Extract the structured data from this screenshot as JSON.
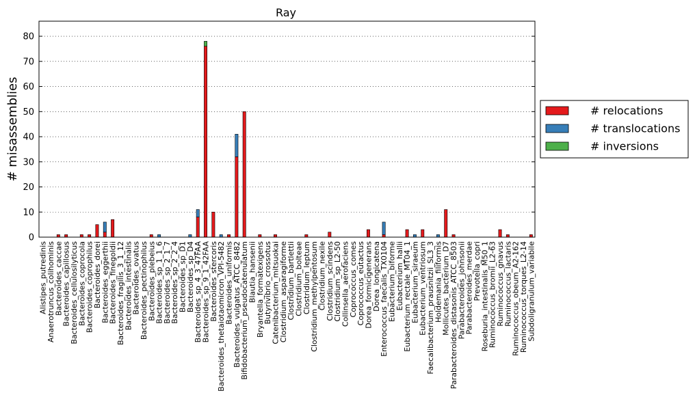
{
  "chart_data": {
    "type": "bar",
    "stacked": true,
    "title": "Ray",
    "xlabel": "",
    "ylabel": "# misassemblies",
    "ylim": [
      0,
      86
    ],
    "yticks": [
      0,
      10,
      20,
      30,
      40,
      50,
      60,
      70,
      80
    ],
    "grid": "horizontal dotted",
    "legend_placement": "right, outside",
    "categories": [
      "Alistipes_putredinis",
      "Anaerotruncus_colihominis",
      "Bacteroides_caccae",
      "Bacteroides_capillosus",
      "Bacteroides_cellulosilyticus",
      "Bacteroides_coprocola",
      "Bacteroides_coprophilus",
      "Bacteroides_dorei",
      "Bacteroides_eggerthii",
      "Bacteroides_finegoldii",
      "Bacteroides_fragilis_3_1_12",
      "Bacteroides_intestinalis",
      "Bacteroides_ovatus",
      "Bacteroides_pectinophilus",
      "Bacteroides_plebeius",
      "Bacteroides_sp_1_1_6",
      "Bacteroides_sp_2_1_7",
      "Bacteroides_sp_2_2_4",
      "Bacteroides_sp_D1",
      "Bacteroides_sp_D4",
      "Bacteroides_sp_4_3_47FAA",
      "Bacteroides_sp_9_1_42FAA",
      "Bacteroides_stercoris",
      "Bacteroides_thetaiotaomicron_VPI-5482",
      "Bacteroides_uniformis",
      "Bacteroides_vulgatus_ATCC_8482",
      "Bifidobacterium_pseudocatenulatum",
      "Blautia_hansenii",
      "Bryantella_formatexigens",
      "Butyrivibrio_crossotus",
      "Catenibacterium_mitsuokai",
      "Clostridium_asparagiforme",
      "Clostridium_bartlettii",
      "Clostridium_bolteae",
      "Clostridium_leptum",
      "Clostridium_methylpentosum",
      "Clostridium_nexile",
      "Clostridium_scindens",
      "Clostridium_sp_L2-50",
      "Collinsella_aerofaciens",
      "Coprococcus_comes",
      "Coprococcus_eutactus",
      "Dorea_formicigenerans",
      "Dorea_longicatena",
      "Enterococcus_faecalis_TX0104",
      "Eubacterium_biforme",
      "Eubacterium_hallii",
      "Eubacterium_rectale_MT04_1",
      "Eubacterium_siraeum",
      "Eubacterium_ventriosum",
      "Faecalibacterium_prausnitzii_SL3_3",
      "Holdemania_filiformis",
      "Mollicutes_bacterium_D7",
      "Parabacteroides_distasonis_ATCC_8503",
      "Parabacteroides_johnsonii",
      "Parabacteroides_merdae",
      "Prevotella_copri",
      "Roseburia_intestinalis_M50_1",
      "Ruminococcus_bromii_L2-63",
      "Ruminococcus_gnavus",
      "Ruminococcus_lactaris",
      "Ruminococcus_obeum_A2-162",
      "Ruminococcus_torques_L2-14",
      "Subdoligranulum_variabile"
    ],
    "series": [
      {
        "name": "# relocations",
        "color": "#e41a1c",
        "values": [
          0,
          0,
          1,
          1,
          0,
          1,
          1,
          5,
          2,
          7,
          0,
          0,
          0,
          0,
          1,
          0,
          0,
          0,
          0,
          0,
          8,
          76,
          10,
          0,
          1,
          32,
          50,
          0,
          1,
          0,
          1,
          0,
          0,
          0,
          1,
          0,
          0,
          2,
          0,
          0,
          0,
          0,
          3,
          0,
          1,
          0,
          0,
          3,
          0,
          3,
          0,
          0,
          11,
          1,
          0,
          0,
          0,
          0,
          0,
          3,
          1,
          0,
          0,
          1
        ]
      },
      {
        "name": "# translocations",
        "color": "#377eb8",
        "values": [
          0,
          0,
          0,
          0,
          0,
          0,
          0,
          0,
          4,
          0,
          0,
          0,
          0,
          0,
          0,
          1,
          0,
          0,
          0,
          1,
          3,
          0,
          0,
          1,
          0,
          9,
          0,
          0,
          0,
          0,
          0,
          0,
          0,
          0,
          0,
          0,
          0,
          0,
          0,
          0,
          0,
          0,
          0,
          0,
          5,
          0,
          0,
          0,
          1,
          0,
          0,
          1,
          0,
          0,
          0,
          0,
          0,
          0,
          0,
          0,
          0,
          0,
          0,
          0
        ]
      },
      {
        "name": "# inversions",
        "color": "#4daf4a",
        "values": [
          0,
          0,
          0,
          0,
          0,
          0,
          0,
          0,
          0,
          0,
          0,
          0,
          0,
          0,
          0,
          0,
          0,
          0,
          0,
          0,
          0,
          2,
          0,
          0,
          0,
          0,
          0,
          0,
          0,
          0,
          0,
          0,
          0,
          0,
          0,
          0,
          0,
          0,
          0,
          0,
          0,
          0,
          0,
          0,
          0,
          0,
          0,
          0,
          0,
          0,
          0,
          0,
          0,
          0,
          0,
          0,
          0,
          0,
          0,
          0,
          0,
          0,
          0,
          0
        ]
      }
    ]
  }
}
